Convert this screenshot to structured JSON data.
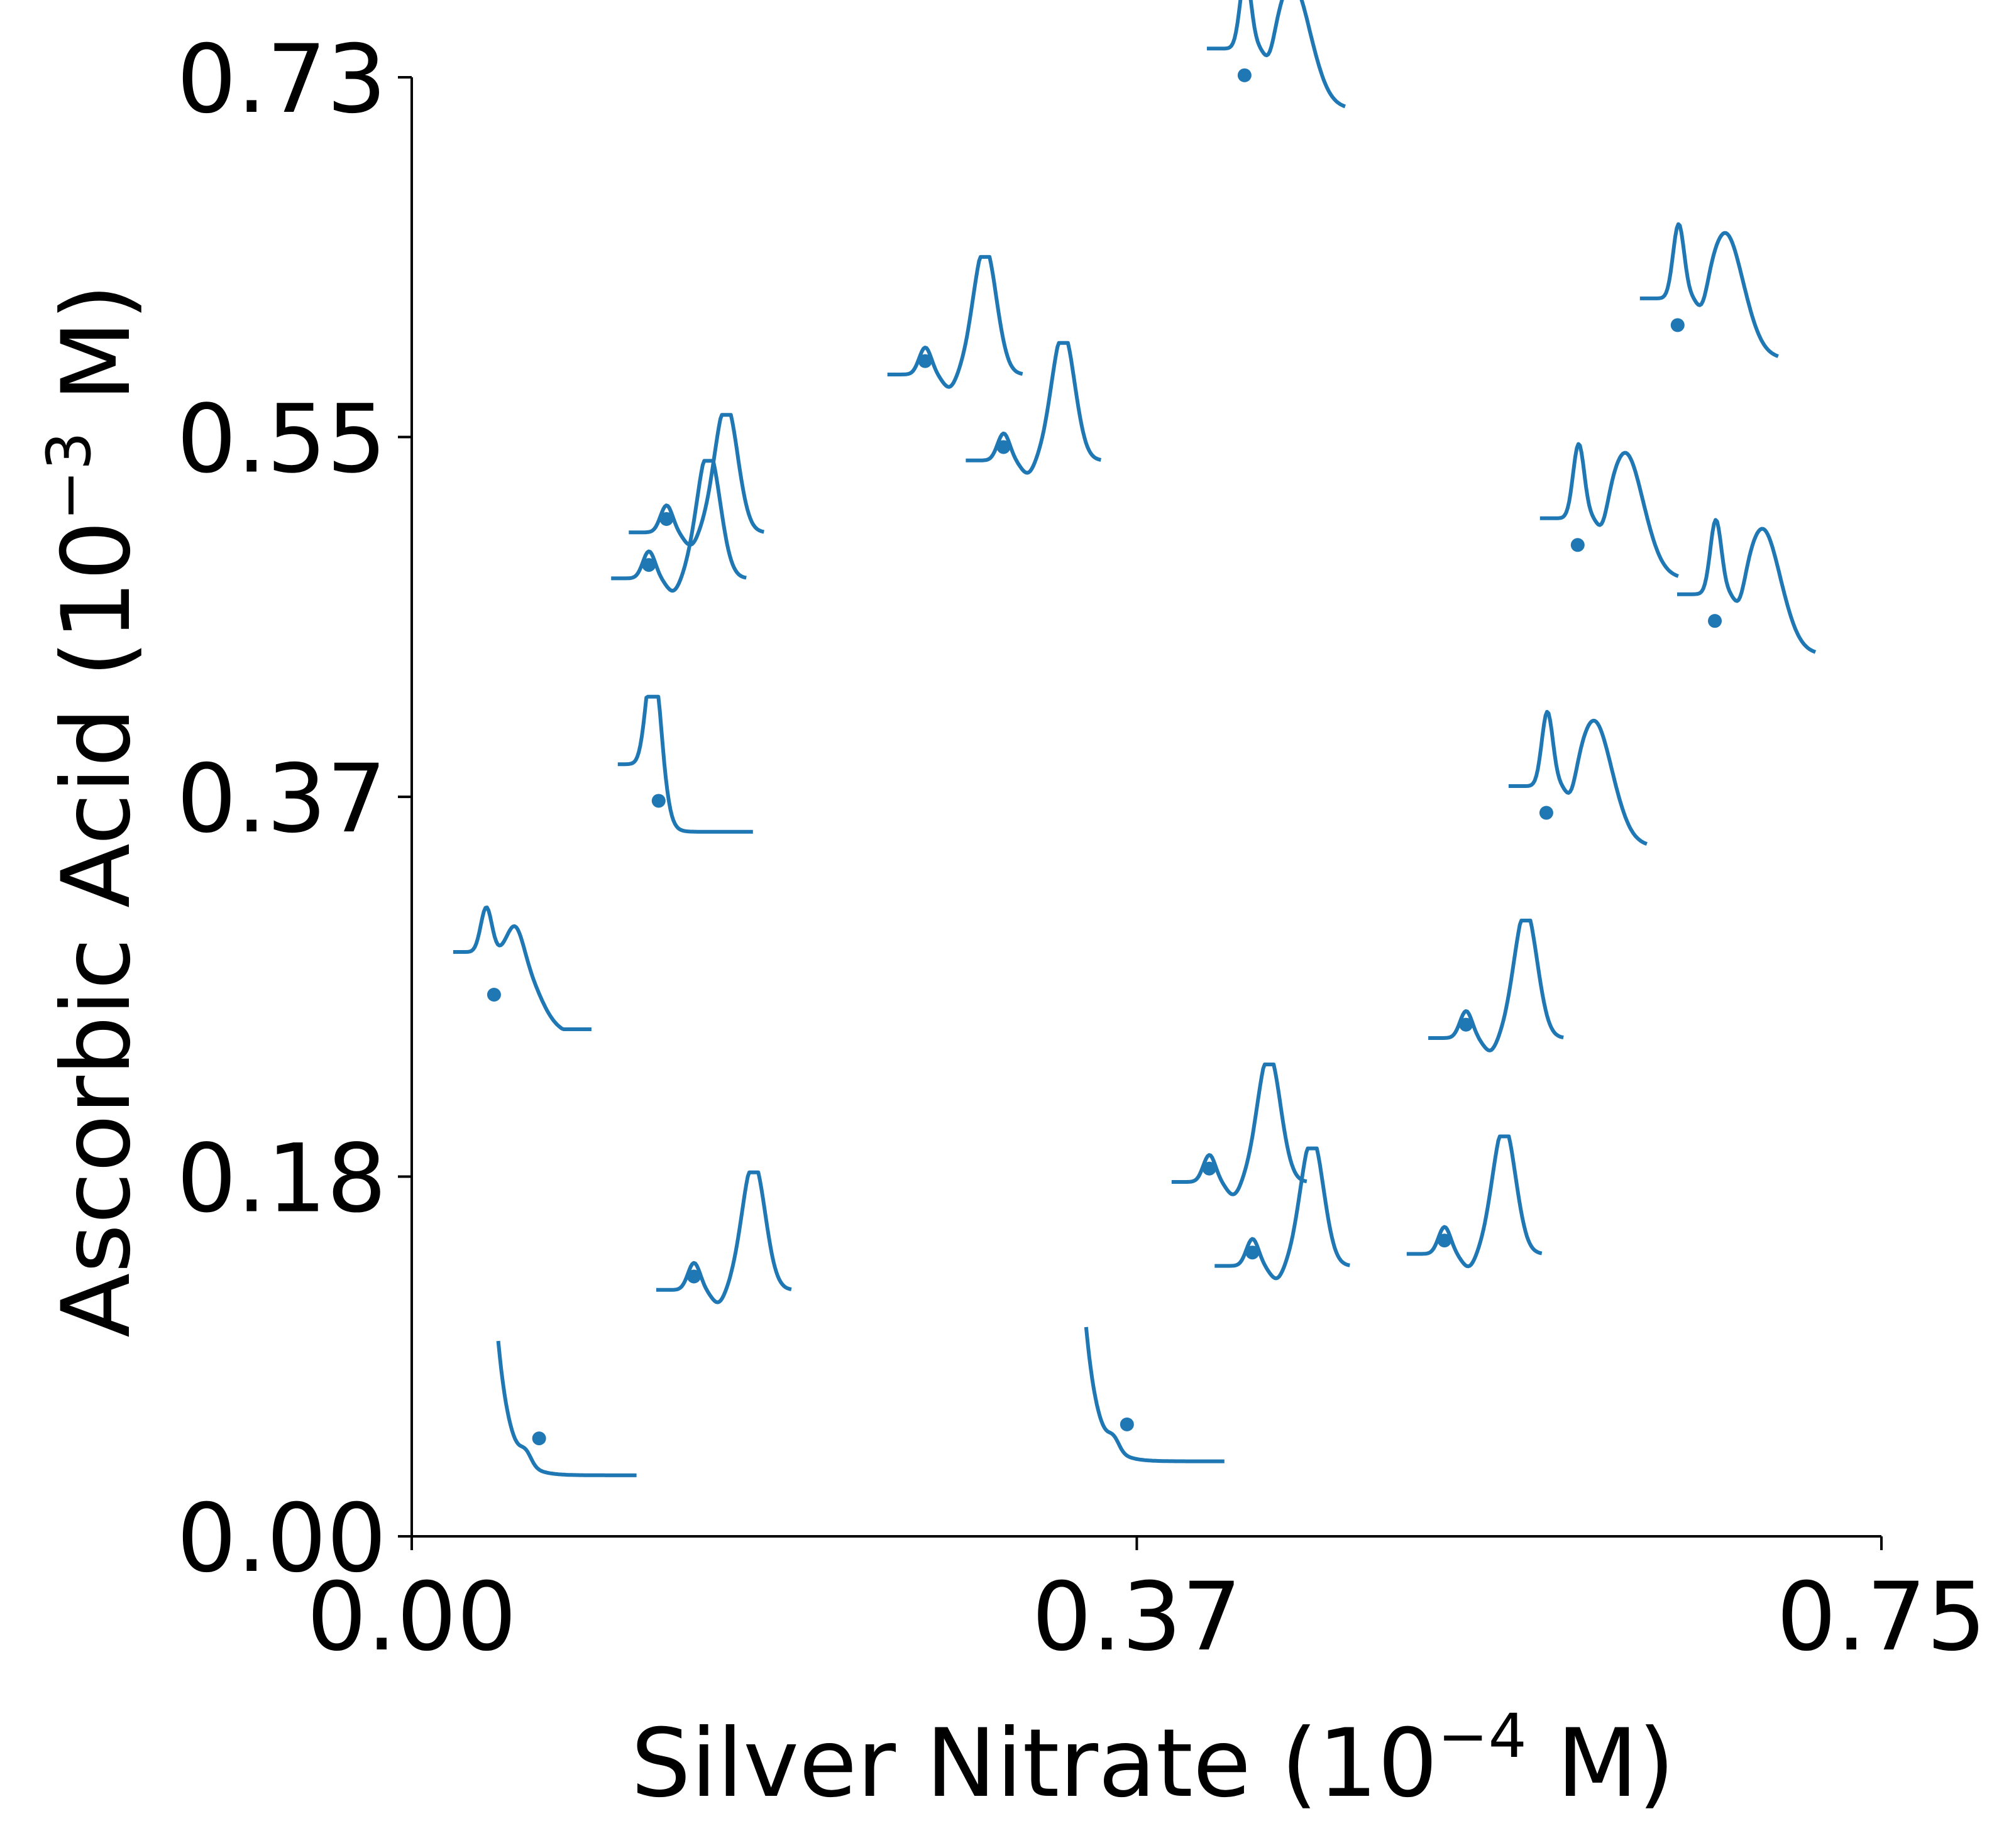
{
  "chart_data": {
    "type": "scatter",
    "title": "",
    "xlabel": {
      "prefix": "Silver Nitrate (10",
      "exponent": "−4",
      "suffix": " M)"
    },
    "ylabel": {
      "prefix": "Ascorbic Acid (10",
      "exponent": "−3",
      "suffix": " M)"
    },
    "xlim": [
      0.0,
      0.75
    ],
    "ylim": [
      0.0,
      0.73
    ],
    "x_ticks": [
      0.0,
      0.37,
      0.75
    ],
    "x_tick_labels": [
      "0.00",
      "0.37",
      "0.75"
    ],
    "y_ticks": [
      0.0,
      0.18,
      0.37,
      0.55,
      0.73
    ],
    "y_tick_labels": [
      "0.00",
      "0.18",
      "0.37",
      "0.55",
      "0.73"
    ],
    "grid": false,
    "color": "#1f77b4",
    "points": [
      {
        "x": 0.065,
        "y": 0.049,
        "spectrum": "decay"
      },
      {
        "x": 0.365,
        "y": 0.056,
        "spectrum": "decay"
      },
      {
        "x": 0.144,
        "y": 0.13,
        "spectrum": "big-right"
      },
      {
        "x": 0.042,
        "y": 0.271,
        "spectrum": "plasmon-broad"
      },
      {
        "x": 0.126,
        "y": 0.368,
        "spectrum": "single-peak"
      },
      {
        "x": 0.121,
        "y": 0.486,
        "spectrum": "big-right"
      },
      {
        "x": 0.13,
        "y": 0.509,
        "spectrum": "big-right"
      },
      {
        "x": 0.262,
        "y": 0.588,
        "spectrum": "big-right"
      },
      {
        "x": 0.302,
        "y": 0.545,
        "spectrum": "big-right"
      },
      {
        "x": 0.425,
        "y": 0.731,
        "spectrum": "double"
      },
      {
        "x": 0.407,
        "y": 0.184,
        "spectrum": "big-right"
      },
      {
        "x": 0.429,
        "y": 0.142,
        "spectrum": "big-right"
      },
      {
        "x": 0.527,
        "y": 0.148,
        "spectrum": "big-right"
      },
      {
        "x": 0.538,
        "y": 0.256,
        "spectrum": "big-right"
      },
      {
        "x": 0.579,
        "y": 0.362,
        "spectrum": "double"
      },
      {
        "x": 0.595,
        "y": 0.496,
        "spectrum": "double"
      },
      {
        "x": 0.646,
        "y": 0.606,
        "spectrum": "double"
      },
      {
        "x": 0.665,
        "y": 0.458,
        "spectrum": "double"
      }
    ]
  }
}
